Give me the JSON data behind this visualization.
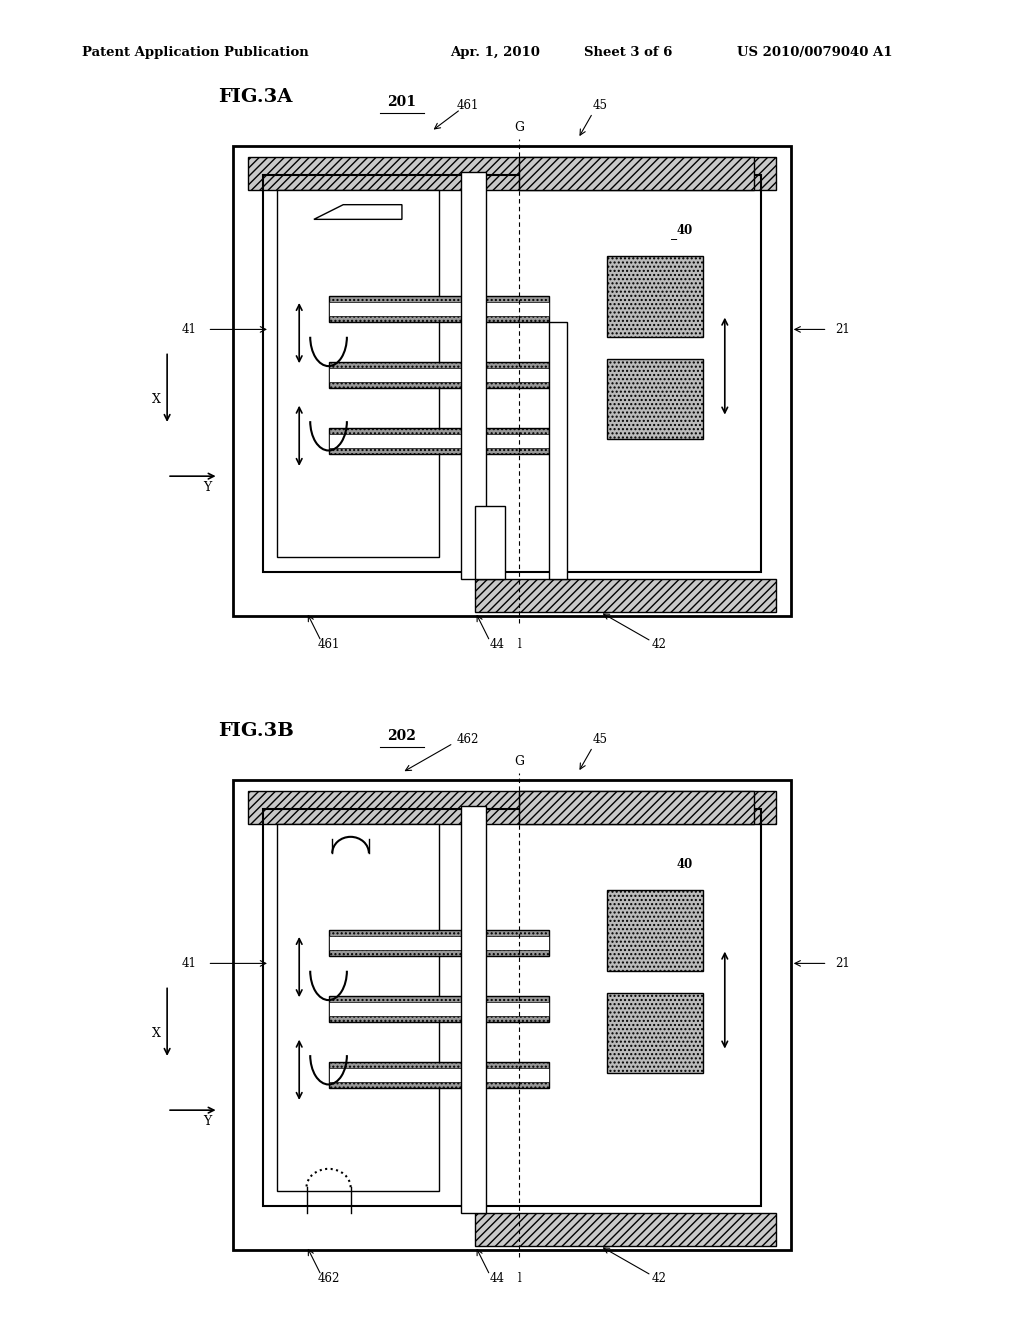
{
  "bg_color": "#ffffff",
  "header_text": "Patent Application Publication",
  "header_date": "Apr. 1, 2010",
  "header_sheet": "Sheet 3 of 6",
  "header_patent": "US 2010/0079040 A1",
  "fig3a_label": "FIG.3A",
  "fig3b_label": "FIG.3B",
  "fig3a_num": "201",
  "fig3b_num": "202",
  "label_21": "21",
  "label_40": "40",
  "label_41": "41",
  "label_42": "42",
  "label_44": "44",
  "label_45": "45",
  "label_461": "461",
  "label_462": "462",
  "label_G": "G",
  "label_X": "X",
  "label_Y": "Y",
  "gray_dark": "#888888",
  "gray_medium": "#aaaaaa",
  "gray_light": "#cccccc",
  "gray_hatch": "#999999",
  "line_color": "#000000",
  "hatch_color": "#888888"
}
